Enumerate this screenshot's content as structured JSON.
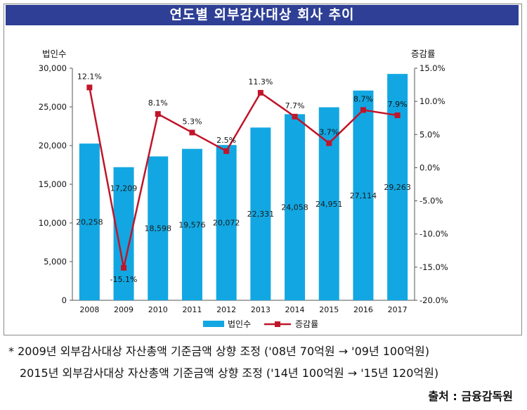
{
  "title": "연도별 외부감사대상 회사 추이",
  "notes": [
    "* 2009년 외부감사대상 자산총액 기준금액 상향 조정 ('08년 70억원 → '09년 100억원)",
    "2015년 외부감사대상 자산총액 기준금액 상향 조정 ('14년 100억원 → '15년 120억원)"
  ],
  "source": "출처 : 금융감독원",
  "colors": {
    "bar": "#12a7e2",
    "line": "#c0152a",
    "title_bg": "#2e3f95"
  },
  "chart_data": {
    "type": "bar",
    "categories": [
      "2008",
      "2009",
      "2010",
      "2011",
      "2012",
      "2013",
      "2014",
      "2015",
      "2016",
      "2017"
    ],
    "series": [
      {
        "name": "법인수",
        "type": "bar",
        "axis": "left",
        "values": [
          20258,
          17209,
          18598,
          19576,
          20072,
          22331,
          24058,
          24951,
          27114,
          29263
        ],
        "labels": [
          "20,258",
          "17,209",
          "18,598",
          "19,576",
          "20,072",
          "22,331",
          "24,058",
          "24,951",
          "27,114",
          "29,263"
        ]
      },
      {
        "name": "증감률",
        "type": "line",
        "axis": "right",
        "values": [
          12.1,
          -15.1,
          8.1,
          5.3,
          2.5,
          11.3,
          7.7,
          3.7,
          8.7,
          7.9
        ],
        "labels": [
          "12.1%",
          "-15.1%",
          "8.1%",
          "5.3%",
          "2.5%",
          "11.3%",
          "7.7%",
          "3.7%",
          "8.7%",
          "7.9%"
        ]
      }
    ],
    "y_left": {
      "label": "법인수",
      "min": 0,
      "max": 30000,
      "ticks": [
        "0",
        "5,000",
        "10,000",
        "15,000",
        "20,000",
        "25,000",
        "30,000"
      ]
    },
    "y_right": {
      "label": "증감률",
      "min": -20,
      "max": 15,
      "ticks": [
        "-20.0%",
        "-15.0%",
        "-10.0%",
        "-5.0%",
        "0.0%",
        "5.0%",
        "10.0%",
        "15.0%"
      ]
    },
    "legend": {
      "position": "bottom",
      "items": [
        "법인수",
        "증감률"
      ]
    },
    "grid": false
  }
}
